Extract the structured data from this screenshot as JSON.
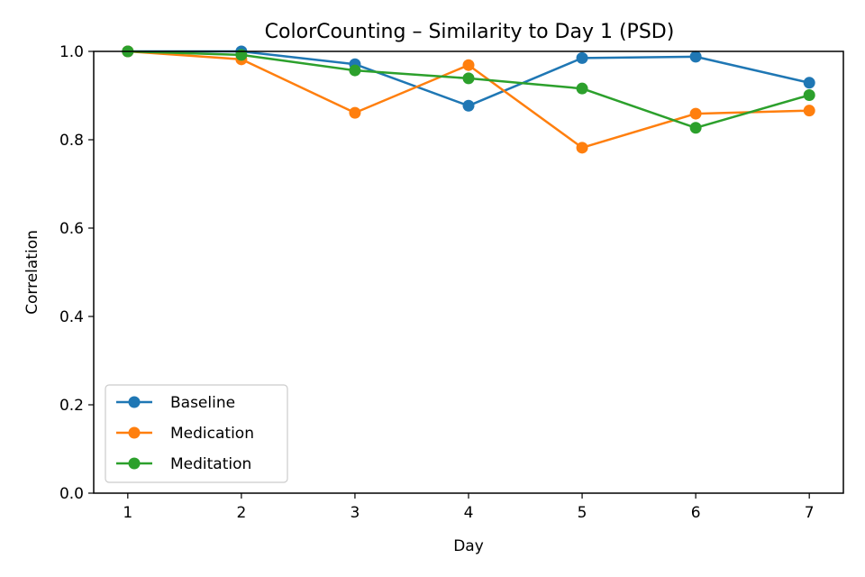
{
  "chart_data": {
    "type": "line",
    "title": "ColorCounting – Similarity to Day 1 (PSD)",
    "xlabel": "Day",
    "ylabel": "Correlation",
    "x": [
      1,
      2,
      3,
      4,
      5,
      6,
      7
    ],
    "xticks": [
      "1",
      "2",
      "3",
      "4",
      "5",
      "6",
      "7"
    ],
    "xlim": [
      0.7,
      7.3
    ],
    "ylim": [
      0.0,
      1.0
    ],
    "yticks": [
      "0.0",
      "0.2",
      "0.4",
      "0.6",
      "0.8",
      "1.0"
    ],
    "grid": false,
    "legend_position": "lower-left",
    "series": [
      {
        "name": "Baseline",
        "color": "#1f77b4",
        "values": [
          1.0,
          1.0,
          0.971,
          0.877,
          0.985,
          0.988,
          0.929
        ]
      },
      {
        "name": "Medication",
        "color": "#ff7f0e",
        "values": [
          1.0,
          0.982,
          0.861,
          0.969,
          0.782,
          0.859,
          0.866
        ]
      },
      {
        "name": "Meditation",
        "color": "#2ca02c",
        "values": [
          1.0,
          0.992,
          0.957,
          0.939,
          0.916,
          0.827,
          0.901
        ]
      }
    ]
  }
}
